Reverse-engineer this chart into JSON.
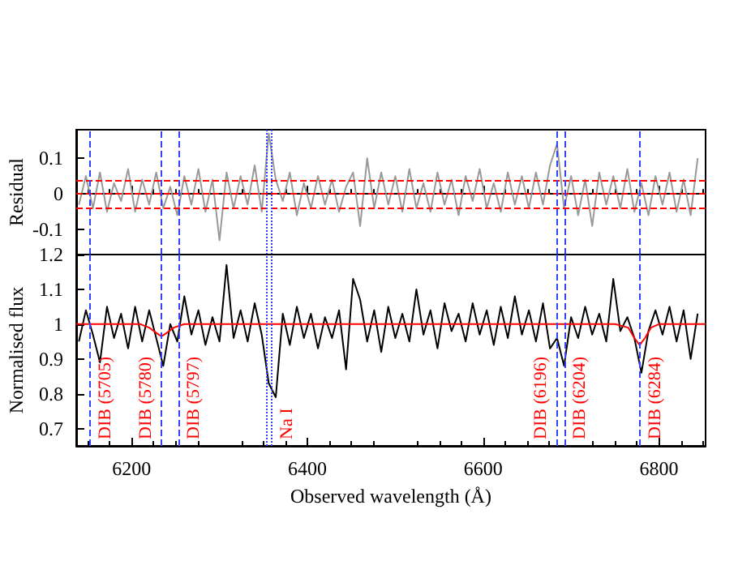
{
  "chart_data": [
    {
      "type": "line",
      "ylabel": "Residual",
      "tick_labels": "y",
      "grid": false,
      "marker": "none",
      "xlim": [
        6137,
        6853
      ],
      "xticks": [
        6200,
        6400,
        6600,
        6800
      ],
      "ylim": [
        -0.17,
        0.18
      ],
      "yticks": [
        -0.1,
        0,
        0.1
      ],
      "x": [
        6140,
        6148,
        6156,
        6164,
        6172,
        6180,
        6188,
        6196,
        6204,
        6212,
        6220,
        6228,
        6236,
        6244,
        6252,
        6260,
        6268,
        6276,
        6284,
        6292,
        6300,
        6308,
        6316,
        6324,
        6332,
        6340,
        6348,
        6356,
        6364,
        6372,
        6380,
        6388,
        6396,
        6404,
        6412,
        6420,
        6428,
        6436,
        6444,
        6452,
        6460,
        6468,
        6476,
        6484,
        6492,
        6500,
        6508,
        6516,
        6524,
        6532,
        6540,
        6548,
        6556,
        6564,
        6572,
        6580,
        6588,
        6596,
        6604,
        6612,
        6620,
        6628,
        6636,
        6644,
        6652,
        6660,
        6668,
        6676,
        6684,
        6692,
        6700,
        6708,
        6716,
        6724,
        6732,
        6740,
        6748,
        6756,
        6764,
        6772,
        6780,
        6788,
        6796,
        6804,
        6812,
        6820,
        6828,
        6836,
        6844
      ],
      "series": [
        {
          "color": "#999999",
          "values": [
            -0.03,
            0.05,
            -0.04,
            0.06,
            -0.05,
            0.03,
            -0.02,
            0.07,
            -0.05,
            0.04,
            -0.03,
            0.06,
            -0.04,
            0.02,
            -0.06,
            0.05,
            -0.03,
            0.07,
            -0.05,
            0.04,
            -0.13,
            0.06,
            -0.04,
            0.05,
            -0.03,
            0.08,
            -0.05,
            0.17,
            0.04,
            -0.02,
            0.06,
            -0.06,
            0.03,
            -0.04,
            0.05,
            -0.03,
            0.04,
            -0.05,
            0.02,
            0.06,
            -0.09,
            0.1,
            -0.04,
            0.06,
            -0.03,
            0.05,
            -0.05,
            0.07,
            -0.04,
            0.03,
            -0.05,
            0.06,
            -0.03,
            0.04,
            -0.06,
            0.05,
            -0.02,
            0.07,
            -0.04,
            0.03,
            -0.05,
            0.06,
            -0.03,
            0.05,
            -0.04,
            0.06,
            -0.03,
            0.08,
            0.14,
            -0.04,
            0.05,
            -0.06,
            0.04,
            -0.09,
            0.06,
            -0.03,
            0.05,
            -0.04,
            0.07,
            -0.05,
            0.03,
            -0.06,
            0.05,
            -0.03,
            0.06,
            -0.05,
            0.04,
            -0.06,
            0.1
          ]
        }
      ],
      "ref_lines": [
        {
          "axis": "y",
          "value": 0.04,
          "color": "#ff0000",
          "line_style": "dashed"
        },
        {
          "axis": "y",
          "value": 0,
          "color": "#ff0000",
          "line_style": "dashed"
        },
        {
          "axis": "y",
          "value": -0.04,
          "color": "#ff0000",
          "line_style": "dashed"
        },
        {
          "axis": "x",
          "value": 6153,
          "color": "#3344ff",
          "line_style": "dashed"
        },
        {
          "axis": "x",
          "value": 6234,
          "color": "#3344ff",
          "line_style": "dashed"
        },
        {
          "axis": "x",
          "value": 6253,
          "color": "#3344ff",
          "line_style": "dashed"
        },
        {
          "axis": "x",
          "value": 6353,
          "color": "#3344ff",
          "line_style": "dotted"
        },
        {
          "axis": "x",
          "value": 6359,
          "color": "#3344ff",
          "line_style": "dotted"
        },
        {
          "axis": "x",
          "value": 6683,
          "color": "#3344ff",
          "line_style": "dashed"
        },
        {
          "axis": "x",
          "value": 6692,
          "color": "#3344ff",
          "line_style": "dashed"
        },
        {
          "axis": "x",
          "value": 6778,
          "color": "#3344ff",
          "line_style": "dashed"
        }
      ]
    },
    {
      "type": "line",
      "xlabel": "Observed wavelength (Å)",
      "ylabel": "Normalised flux",
      "grid": false,
      "marker": "none",
      "xlim": [
        6137,
        6853
      ],
      "xticks": [
        6200,
        6400,
        6600,
        6800
      ],
      "ylim": [
        0.65,
        1.2
      ],
      "yticks": [
        0.7,
        0.8,
        0.9,
        1,
        1.1,
        1.2
      ],
      "x": [
        6140,
        6148,
        6156,
        6164,
        6172,
        6180,
        6188,
        6196,
        6204,
        6212,
        6220,
        6228,
        6236,
        6244,
        6252,
        6260,
        6268,
        6276,
        6284,
        6292,
        6300,
        6308,
        6316,
        6324,
        6332,
        6340,
        6348,
        6356,
        6364,
        6372,
        6380,
        6388,
        6396,
        6404,
        6412,
        6420,
        6428,
        6436,
        6444,
        6452,
        6460,
        6468,
        6476,
        6484,
        6492,
        6500,
        6508,
        6516,
        6524,
        6532,
        6540,
        6548,
        6556,
        6564,
        6572,
        6580,
        6588,
        6596,
        6604,
        6612,
        6620,
        6628,
        6636,
        6644,
        6652,
        6660,
        6668,
        6676,
        6684,
        6692,
        6700,
        6708,
        6716,
        6724,
        6732,
        6740,
        6748,
        6756,
        6764,
        6772,
        6780,
        6788,
        6796,
        6804,
        6812,
        6820,
        6828,
        6836,
        6844
      ],
      "series": [
        {
          "color": "#000000",
          "values": [
            0.95,
            1.04,
            0.97,
            0.89,
            1.05,
            0.96,
            1.03,
            0.93,
            1.05,
            0.95,
            1.04,
            0.96,
            0.88,
            1.0,
            0.95,
            1.08,
            0.97,
            1.04,
            0.94,
            1.02,
            0.95,
            1.17,
            0.96,
            1.04,
            0.95,
            1.06,
            0.97,
            0.83,
            0.79,
            1.03,
            0.94,
            1.05,
            0.96,
            1.03,
            0.93,
            1.02,
            0.96,
            1.04,
            0.87,
            1.13,
            1.07,
            0.95,
            1.04,
            0.92,
            1.05,
            0.96,
            1.03,
            0.95,
            1.1,
            0.97,
            1.04,
            0.93,
            1.06,
            0.98,
            1.03,
            0.95,
            1.06,
            0.97,
            1.04,
            0.94,
            1.05,
            0.96,
            1.08,
            0.97,
            1.04,
            0.95,
            1.06,
            0.93,
            0.96,
            0.88,
            1.02,
            0.96,
            1.05,
            0.97,
            1.03,
            0.95,
            1.13,
            0.98,
            1.02,
            0.96,
            0.86,
            0.98,
            1.04,
            0.97,
            1.05,
            0.95,
            1.04,
            0.9,
            1.03
          ]
        },
        {
          "color": "#ff0000",
          "x": [
            6137,
            6210,
            6220,
            6228,
            6234,
            6240,
            6248,
            6260,
            6750,
            6765,
            6772,
            6778,
            6784,
            6791,
            6800,
            6853
          ],
          "values": [
            1,
            1,
            0.99,
            0.975,
            0.965,
            0.975,
            0.99,
            1,
            1,
            0.99,
            0.96,
            0.94,
            0.96,
            0.99,
            1,
            1
          ]
        }
      ],
      "ref_lines": [
        {
          "axis": "x",
          "value": 6153,
          "color": "#3344ff",
          "line_style": "dashed",
          "label": "DIB (5705)"
        },
        {
          "axis": "x",
          "value": 6234,
          "color": "#3344ff",
          "line_style": "dashed",
          "label": "DIB (5780)"
        },
        {
          "axis": "x",
          "value": 6253,
          "color": "#3344ff",
          "line_style": "dashed",
          "label": "DIB (5797)"
        },
        {
          "axis": "x",
          "value": 6353,
          "color": "#3344ff",
          "line_style": "dotted"
        },
        {
          "axis": "x",
          "value": 6359,
          "color": "#3344ff",
          "line_style": "dotted",
          "label": "Na I"
        },
        {
          "axis": "x",
          "value": 6683,
          "color": "#3344ff",
          "line_style": "dashed",
          "label": "DIB (6196)"
        },
        {
          "axis": "x",
          "value": 6692,
          "color": "#3344ff",
          "line_style": "dashed",
          "label": "DIB (6204)"
        },
        {
          "axis": "x",
          "value": 6778,
          "color": "#3344ff",
          "line_style": "dashed",
          "label": "DIB (6284)"
        }
      ]
    }
  ]
}
